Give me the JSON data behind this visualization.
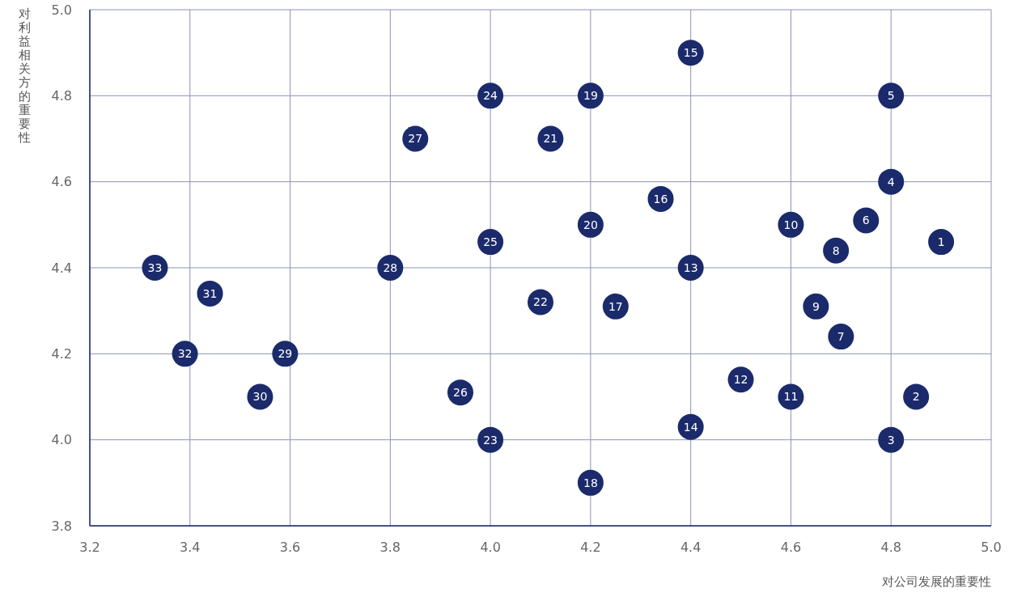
{
  "chart_data": {
    "type": "scatter",
    "xlabel": "对公司发展的重要性",
    "ylabel": "对利益相关方的重要性",
    "xlim": [
      3.2,
      5.0
    ],
    "ylim": [
      3.8,
      5.0
    ],
    "xticks": [
      {
        "value": 3.2,
        "label": "3.2"
      },
      {
        "value": 3.4,
        "label": "3.4"
      },
      {
        "value": 3.6,
        "label": "3.6"
      },
      {
        "value": 3.8,
        "label": "3.8"
      },
      {
        "value": 4.0,
        "label": "4.0"
      },
      {
        "value": 4.2,
        "label": "4.2"
      },
      {
        "value": 4.4,
        "label": "4.4"
      },
      {
        "value": 4.6,
        "label": "4.6"
      },
      {
        "value": 4.8,
        "label": "4.8"
      },
      {
        "value": 5.0,
        "label": "5.0"
      }
    ],
    "yticks": [
      {
        "value": 3.8,
        "label": "3.8"
      },
      {
        "value": 4.0,
        "label": "4.0"
      },
      {
        "value": 4.2,
        "label": "4.2"
      },
      {
        "value": 4.4,
        "label": "4.4"
      },
      {
        "value": 4.6,
        "label": "4.6"
      },
      {
        "value": 4.8,
        "label": "4.8"
      },
      {
        "value": 5.0,
        "label": "5.0"
      }
    ],
    "grid": true,
    "marker": "circle",
    "series": [
      {
        "color": "#1b2a6b",
        "x": [
          4.9,
          4.85,
          4.8,
          4.8,
          4.8,
          4.75,
          4.7,
          4.69,
          4.65,
          4.6,
          4.6,
          4.5,
          4.4,
          4.4,
          4.4,
          4.34,
          4.25,
          4.2,
          4.2,
          4.2,
          4.12,
          4.1,
          4.0,
          4.0,
          4.0,
          3.94,
          3.85,
          3.8,
          3.59,
          3.54,
          3.44,
          3.39,
          3.33
        ],
        "values": [
          4.46,
          4.1,
          4.0,
          4.6,
          4.8,
          4.51,
          4.24,
          4.44,
          4.31,
          4.5,
          4.1,
          4.14,
          4.4,
          4.03,
          4.9,
          4.56,
          4.31,
          3.9,
          4.8,
          4.5,
          4.7,
          4.32,
          4.0,
          4.8,
          4.46,
          4.11,
          4.7,
          4.4,
          4.2,
          4.1,
          4.34,
          4.2,
          4.4
        ]
      }
    ],
    "annotations": [
      {
        "text": "1",
        "x": 4.9,
        "y": 4.46
      },
      {
        "text": "2",
        "x": 4.85,
        "y": 4.1
      },
      {
        "text": "3",
        "x": 4.8,
        "y": 4.0
      },
      {
        "text": "4",
        "x": 4.8,
        "y": 4.6
      },
      {
        "text": "5",
        "x": 4.8,
        "y": 4.8
      },
      {
        "text": "6",
        "x": 4.75,
        "y": 4.51
      },
      {
        "text": "7",
        "x": 4.7,
        "y": 4.24
      },
      {
        "text": "8",
        "x": 4.69,
        "y": 4.44
      },
      {
        "text": "9",
        "x": 4.65,
        "y": 4.31
      },
      {
        "text": "10",
        "x": 4.6,
        "y": 4.5
      },
      {
        "text": "11",
        "x": 4.6,
        "y": 4.1
      },
      {
        "text": "12",
        "x": 4.5,
        "y": 4.14
      },
      {
        "text": "13",
        "x": 4.4,
        "y": 4.4
      },
      {
        "text": "14",
        "x": 4.4,
        "y": 4.03
      },
      {
        "text": "15",
        "x": 4.4,
        "y": 4.9
      },
      {
        "text": "16",
        "x": 4.34,
        "y": 4.56
      },
      {
        "text": "17",
        "x": 4.25,
        "y": 4.31
      },
      {
        "text": "18",
        "x": 4.2,
        "y": 3.9
      },
      {
        "text": "19",
        "x": 4.2,
        "y": 4.8
      },
      {
        "text": "20",
        "x": 4.2,
        "y": 4.5
      },
      {
        "text": "21",
        "x": 4.12,
        "y": 4.7
      },
      {
        "text": "22",
        "x": 4.1,
        "y": 4.32
      },
      {
        "text": "23",
        "x": 4.0,
        "y": 4.0
      },
      {
        "text": "24",
        "x": 4.0,
        "y": 4.8
      },
      {
        "text": "25",
        "x": 4.0,
        "y": 4.46
      },
      {
        "text": "26",
        "x": 3.94,
        "y": 4.11
      },
      {
        "text": "27",
        "x": 3.85,
        "y": 4.7
      },
      {
        "text": "28",
        "x": 3.8,
        "y": 4.4
      },
      {
        "text": "29",
        "x": 3.59,
        "y": 4.2
      },
      {
        "text": "30",
        "x": 3.54,
        "y": 4.1
      },
      {
        "text": "31",
        "x": 3.44,
        "y": 4.34
      },
      {
        "text": "32",
        "x": 3.39,
        "y": 4.2
      },
      {
        "text": "33",
        "x": 3.33,
        "y": 4.4
      }
    ]
  }
}
